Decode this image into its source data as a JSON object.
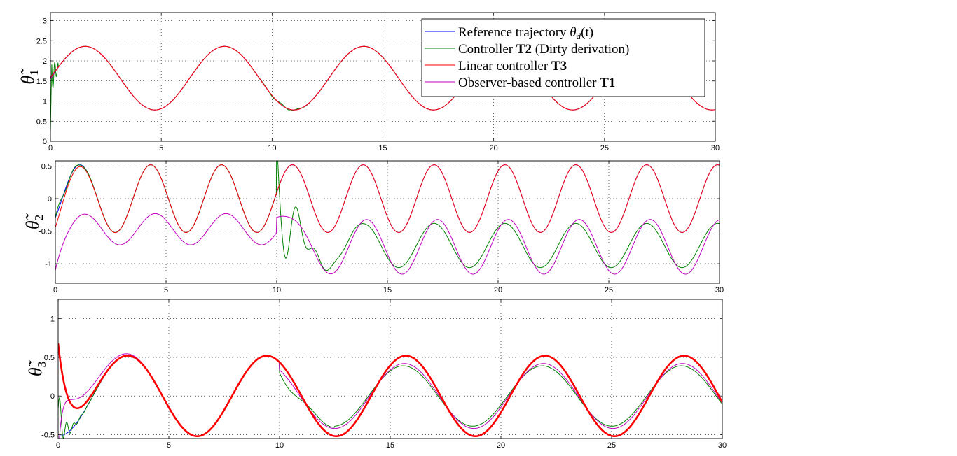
{
  "chart_data": [
    {
      "type": "line",
      "ylabel": "θ̃1",
      "ylabel_symbol": "θ̃",
      "ylabel_sub": "1",
      "xlim": [
        0,
        30
      ],
      "ylim": [
        0,
        3.2
      ],
      "xticks": [
        "0",
        "5",
        "10",
        "15",
        "20",
        "25",
        "30"
      ],
      "yticks": [
        "0",
        "0.5",
        "1",
        "1.5",
        "2",
        "2.5",
        "3"
      ],
      "grid": true,
      "legend_placement": "top-right",
      "legend": [
        {
          "text": "Reference trajectory θd(t)",
          "parts": [
            "Reference trajectory ",
            "θ",
            "d",
            "(t)"
          ],
          "color": "#0000ff"
        },
        {
          "text": "Controller T2 (Dirty derivation)",
          "parts": [
            "Controller ",
            "T2",
            " (Dirty derivation)"
          ],
          "color": "#008000"
        },
        {
          "text": "Linear controller T3",
          "parts": [
            "Linear controller ",
            "T3"
          ],
          "color": "#ff0000"
        },
        {
          "text": "Observer-based controller T1",
          "parts": [
            "Observer-based controller ",
            "T1"
          ],
          "color": "#bf00bf"
        }
      ],
      "series": [
        {
          "color": "#0000ff",
          "signal": "sine",
          "offset": 1.57,
          "amplitude": 0.79,
          "period": 6.283
        },
        {
          "color": "#008000",
          "signal": "sine",
          "offset": 1.57,
          "amplitude": 0.79,
          "period": 6.283
        },
        {
          "color": "#ff0000",
          "signal": "sine",
          "offset": 1.57,
          "amplitude": 0.79,
          "period": 6.283
        },
        {
          "color": "#bf00bf",
          "signal": "sine",
          "offset": 1.57,
          "amplitude": 0.79,
          "period": 6.283
        }
      ]
    },
    {
      "type": "line",
      "ylabel": "θ̃2",
      "ylabel_symbol": "θ̃",
      "ylabel_sub": "2",
      "xlim": [
        0,
        30
      ],
      "ylim": [
        -1.3,
        0.58
      ],
      "xticks": [
        "0",
        "5",
        "10",
        "15",
        "20",
        "25",
        "30"
      ],
      "yticks": [
        "-1",
        "-0.5",
        "0",
        "0.5"
      ],
      "grid": true,
      "series": [
        {
          "color": "#0000ff",
          "signal": "sine",
          "amplitude": 0.52,
          "period": 3.2
        },
        {
          "color": "#008000",
          "signal": "sine",
          "amplitude": 0.52,
          "period": 3.2,
          "drops_after": 10,
          "offset_after": -0.72,
          "amplitude_after": 0.34
        },
        {
          "color": "#ff0000",
          "signal": "sine",
          "amplitude": 0.52,
          "period": 3.2
        },
        {
          "color": "#bf00bf",
          "signal": "sine",
          "amplitude": 0.52,
          "period": 3.2,
          "offset_early": -0.47,
          "offset_after": -0.74,
          "amplitude_after": 0.42
        }
      ]
    },
    {
      "type": "line",
      "ylabel": "θ̃3",
      "ylabel_symbol": "θ̃",
      "ylabel_sub": "3",
      "xlim": [
        0,
        30
      ],
      "ylim": [
        -0.55,
        1.25
      ],
      "xticks": [
        "0",
        "5",
        "10",
        "15",
        "20",
        "25",
        "30"
      ],
      "yticks": [
        "-0.5",
        "0",
        "0.5",
        "1"
      ],
      "grid": true,
      "series": [
        {
          "color": "#0000ff",
          "signal": "sine",
          "amplitude": 0.52,
          "period": 6.283
        },
        {
          "color": "#008000",
          "signal": "sine",
          "amplitude": 0.52,
          "period": 6.283,
          "amplitude_after": 0.39
        },
        {
          "color": "#ff0000",
          "signal": "sine",
          "amplitude": 0.52,
          "period": 6.283
        },
        {
          "color": "#bf00bf",
          "signal": "sine",
          "amplitude": 0.52,
          "period": 6.283,
          "amplitude_after": 0.42
        }
      ]
    }
  ]
}
